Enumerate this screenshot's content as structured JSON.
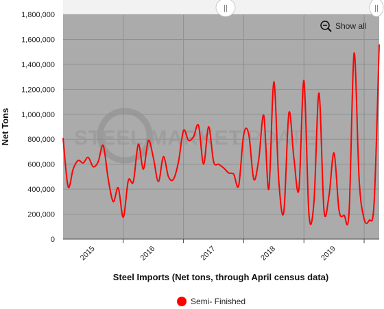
{
  "chart_data": {
    "type": "line",
    "title": "",
    "xlabel": "Steel Imports (Net tons, through April census data)",
    "ylabel": "Net Tons",
    "ylim": [
      0,
      1800000
    ],
    "yticks": [
      "0",
      "200,000",
      "400,000",
      "600,000",
      "800,000",
      "1,000,000",
      "1,200,000",
      "1,400,000",
      "1,600,000",
      "1,800,000"
    ],
    "xticks": [
      "2015",
      "2016",
      "2017",
      "2018",
      "2019"
    ],
    "x_range": [
      "2015-01",
      "2020-04"
    ],
    "grid": true,
    "legend_position": "bottom",
    "series": [
      {
        "name": "Semi- Finished",
        "color": "#ff0000",
        "x": [
          "2015-01",
          "2015-02",
          "2015-03",
          "2015-04",
          "2015-05",
          "2015-06",
          "2015-07",
          "2015-08",
          "2015-09",
          "2015-10",
          "2015-11",
          "2015-12",
          "2016-01",
          "2016-02",
          "2016-03",
          "2016-04",
          "2016-05",
          "2016-06",
          "2016-07",
          "2016-08",
          "2016-09",
          "2016-10",
          "2016-11",
          "2016-12",
          "2017-01",
          "2017-02",
          "2017-03",
          "2017-04",
          "2017-05",
          "2017-06",
          "2017-07",
          "2017-08",
          "2017-09",
          "2017-10",
          "2017-11",
          "2017-12",
          "2018-01",
          "2018-02",
          "2018-03",
          "2018-04",
          "2018-05",
          "2018-06",
          "2018-07",
          "2018-08",
          "2018-09",
          "2018-10",
          "2018-11",
          "2018-12",
          "2019-01",
          "2019-02",
          "2019-03",
          "2019-04",
          "2019-05",
          "2019-06",
          "2019-07",
          "2019-08",
          "2019-09",
          "2019-10",
          "2019-11",
          "2019-12",
          "2020-01",
          "2020-02",
          "2020-03",
          "2020-04"
        ],
        "values": [
          810000,
          420000,
          560000,
          630000,
          610000,
          655000,
          580000,
          620000,
          750000,
          480000,
          300000,
          410000,
          175000,
          470000,
          460000,
          760000,
          560000,
          790000,
          650000,
          460000,
          660000,
          500000,
          480000,
          620000,
          870000,
          790000,
          820000,
          910000,
          600000,
          900000,
          620000,
          600000,
          570000,
          530000,
          520000,
          430000,
          840000,
          840000,
          480000,
          640000,
          990000,
          400000,
          1260000,
          460000,
          220000,
          1010000,
          650000,
          400000,
          1270000,
          200000,
          300000,
          1170000,
          230000,
          350000,
          690000,
          230000,
          190000,
          220000,
          1490000,
          480000,
          160000,
          150000,
          300000,
          1560000
        ]
      }
    ]
  },
  "navigator": {
    "show_all_label": "Show all",
    "zoom_icon": "zoom-out-icon",
    "handle_left_label": "||",
    "handle_right_label": "||"
  },
  "watermark": {
    "text_bold": "STEEL MARKET",
    "text_light": "UPDATE"
  },
  "colors": {
    "plot_background": "#ababab",
    "gridline": "#8f8f8f",
    "line": "#ff0000",
    "navigator_bar": "#f2f2f2"
  }
}
